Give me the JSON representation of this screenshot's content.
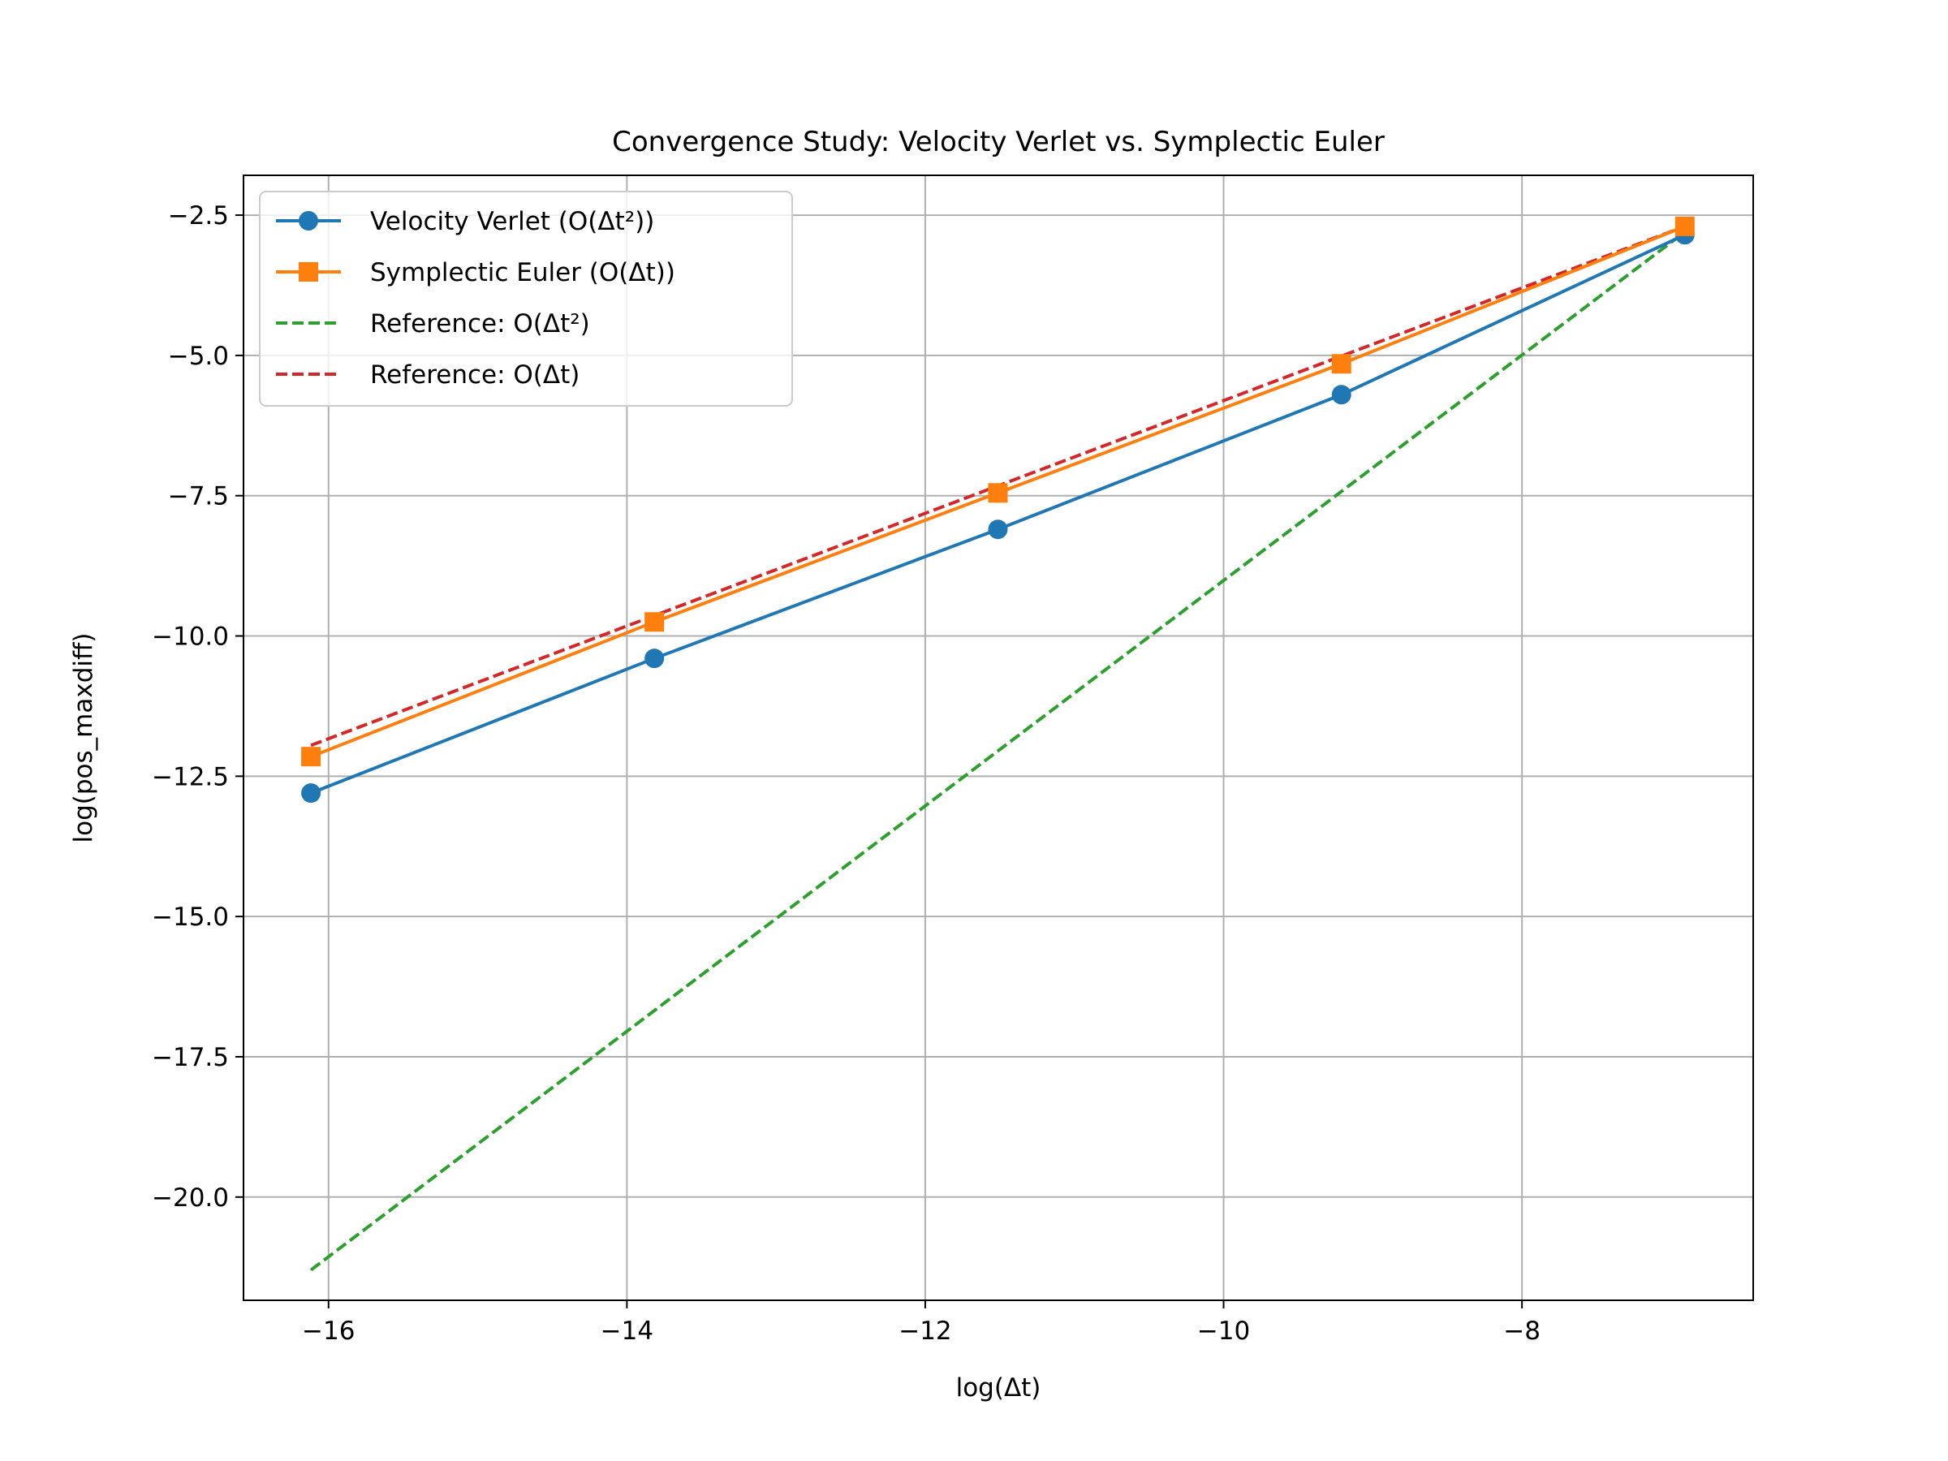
{
  "chart_data": {
    "type": "line",
    "title": "Convergence Study: Velocity Verlet vs. Symplectic Euler",
    "xlabel": "log(Δt)",
    "ylabel": "log(pos_maxdiff)",
    "xlim": [
      -16.57,
      -6.45
    ],
    "ylim": [
      -21.84,
      -1.79
    ],
    "x_ticks": [
      -16,
      -14,
      -12,
      -10,
      -8
    ],
    "x_tick_labels": [
      "−16",
      "−14",
      "−12",
      "−10",
      "−8"
    ],
    "y_ticks": [
      -2.5,
      -5.0,
      -7.5,
      -10.0,
      -12.5,
      -15.0,
      -17.5,
      -20.0
    ],
    "y_tick_labels": [
      "−2.5",
      "−5.0",
      "−7.5",
      "−10.0",
      "−12.5",
      "−15.0",
      "−17.5",
      "−20.0"
    ],
    "grid": true,
    "legend_position": "top-left",
    "series": [
      {
        "name": "Velocity Verlet (O(Δt²))",
        "color": "#1f77b4",
        "style": "solid",
        "marker": "circle",
        "x": [
          -16.118,
          -13.816,
          -11.513,
          -9.21,
          -6.908
        ],
        "y": [
          -12.8,
          -10.4,
          -8.1,
          -5.7,
          -2.85
        ]
      },
      {
        "name": "Symplectic Euler (O(Δt))",
        "color": "#ff7f0e",
        "style": "solid",
        "marker": "square",
        "x": [
          -16.118,
          -13.816,
          -11.513,
          -9.21,
          -6.908
        ],
        "y": [
          -12.15,
          -9.75,
          -7.45,
          -5.15,
          -2.7
        ]
      },
      {
        "name": "Reference: O(Δt²)",
        "color": "#2ca02c",
        "style": "dashed",
        "marker": "none",
        "x": [
          -16.118,
          -6.908
        ],
        "y": [
          -21.3,
          -2.8
        ]
      },
      {
        "name": "Reference: O(Δt)",
        "color": "#d62728",
        "style": "dashed",
        "marker": "none",
        "x": [
          -16.118,
          -6.908
        ],
        "y": [
          -11.95,
          -2.7
        ]
      }
    ]
  }
}
